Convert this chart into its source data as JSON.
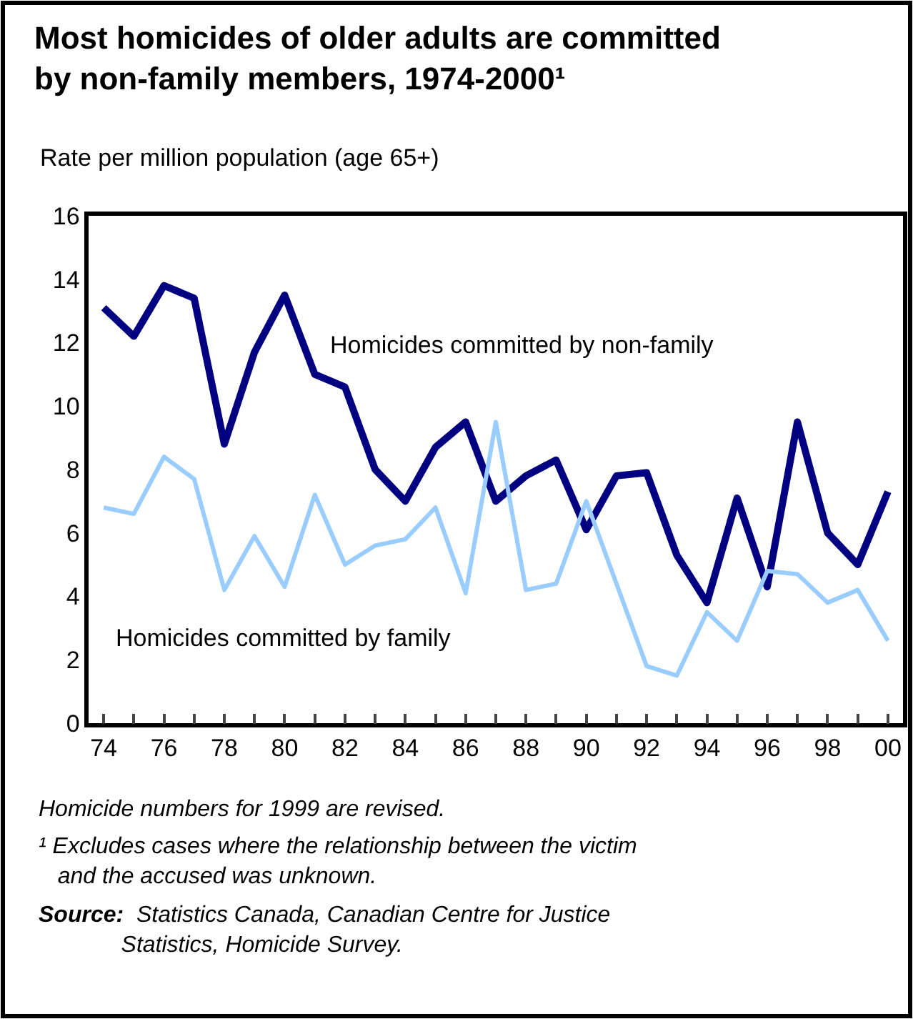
{
  "chart_data": {
    "type": "line",
    "title": "Most homicides of older adults are committed by non-family members, 1974-2000¹",
    "subtitle": "Rate per million population (age 65+)",
    "x": [
      1974,
      1975,
      1976,
      1977,
      1978,
      1979,
      1980,
      1981,
      1982,
      1983,
      1984,
      1985,
      1986,
      1987,
      1988,
      1989,
      1990,
      1991,
      1992,
      1993,
      1994,
      1995,
      1996,
      1997,
      1998,
      1999,
      2000
    ],
    "series": [
      {
        "name": "Homicides committed by non-family",
        "color": "#000080",
        "values": [
          13.1,
          12.2,
          13.8,
          13.4,
          8.8,
          11.7,
          13.5,
          11.0,
          10.6,
          8.0,
          7.0,
          8.7,
          9.5,
          7.0,
          7.8,
          8.3,
          6.1,
          7.8,
          7.9,
          5.3,
          3.8,
          7.1,
          4.3,
          9.5,
          6.0,
          5.0,
          7.3
        ]
      },
      {
        "name": "Homicides committed by family",
        "color": "#99ccff",
        "values": [
          6.8,
          6.6,
          8.4,
          7.7,
          4.2,
          5.9,
          4.3,
          7.2,
          5.0,
          5.6,
          5.8,
          6.8,
          4.1,
          9.5,
          4.2,
          4.4,
          7.0,
          4.4,
          1.8,
          1.5,
          3.5,
          2.6,
          4.8,
          4.7,
          3.8,
          4.2,
          2.6
        ]
      }
    ],
    "xlim": [
      1973.5,
      2000.5
    ],
    "xticks": [
      {
        "value": 1974,
        "label": "74"
      },
      {
        "value": 1975,
        "label": null
      },
      {
        "value": 1976,
        "label": "76"
      },
      {
        "value": 1977,
        "label": null
      },
      {
        "value": 1978,
        "label": "78"
      },
      {
        "value": 1979,
        "label": null
      },
      {
        "value": 1980,
        "label": "80"
      },
      {
        "value": 1981,
        "label": null
      },
      {
        "value": 1982,
        "label": "82"
      },
      {
        "value": 1983,
        "label": null
      },
      {
        "value": 1984,
        "label": "84"
      },
      {
        "value": 1985,
        "label": null
      },
      {
        "value": 1986,
        "label": "86"
      },
      {
        "value": 1987,
        "label": null
      },
      {
        "value": 1988,
        "label": "88"
      },
      {
        "value": 1989,
        "label": null
      },
      {
        "value": 1990,
        "label": "90"
      },
      {
        "value": 1991,
        "label": null
      },
      {
        "value": 1992,
        "label": "92"
      },
      {
        "value": 1993,
        "label": null
      },
      {
        "value": 1994,
        "label": "94"
      },
      {
        "value": 1995,
        "label": null
      },
      {
        "value": 1996,
        "label": "96"
      },
      {
        "value": 1997,
        "label": null
      },
      {
        "value": 1998,
        "label": "98"
      },
      {
        "value": 1999,
        "label": null
      },
      {
        "value": 2000,
        "label": "00"
      }
    ],
    "ylim": [
      0,
      16
    ],
    "yticks": [
      0,
      2,
      4,
      6,
      8,
      10,
      12,
      14,
      16
    ],
    "grid": false,
    "legend": false,
    "marker": "none",
    "line_style": "solid",
    "annotations": [
      "Homicide numbers for 1999 are revised.",
      "¹ Excludes cases where the relationship between the victim and the accused was unknown.",
      "Source: Statistics Canada, Canadian Centre for Justice Statistics, Homicide Survey."
    ]
  }
}
